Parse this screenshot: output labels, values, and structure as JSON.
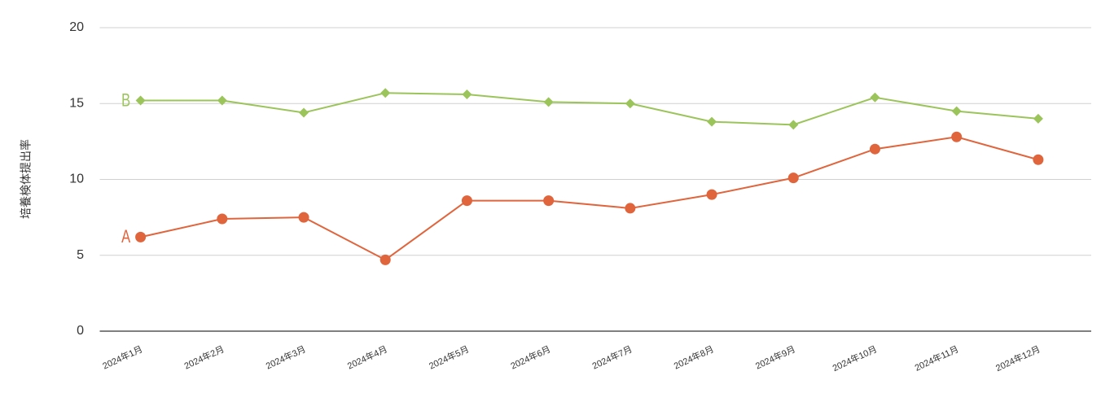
{
  "chart_data": {
    "type": "line",
    "y_label": "培養検体提出率",
    "categories": [
      "2024年1月",
      "2024年2月",
      "2024年3月",
      "2024年4月",
      "2024年5月",
      "2024年6月",
      "2024年7月",
      "2024年8月",
      "2024年9月",
      "2024年10月",
      "2024年11月",
      "2024年12月"
    ],
    "series": [
      {
        "name": "A",
        "color": "#e0643c",
        "marker": "circle",
        "values": [
          6.2,
          7.4,
          7.5,
          4.7,
          8.6,
          8.6,
          8.1,
          9.0,
          10.1,
          12.0,
          12.8,
          11.3
        ]
      },
      {
        "name": "B",
        "color": "#9bc45a",
        "marker": "diamond",
        "values": [
          15.2,
          15.2,
          14.4,
          15.7,
          15.6,
          15.1,
          15.0,
          13.8,
          13.6,
          15.4,
          14.5,
          14.0
        ]
      }
    ],
    "ylim": [
      0,
      20
    ],
    "yticks": [
      0,
      5,
      10,
      15,
      20
    ],
    "grid": true
  }
}
